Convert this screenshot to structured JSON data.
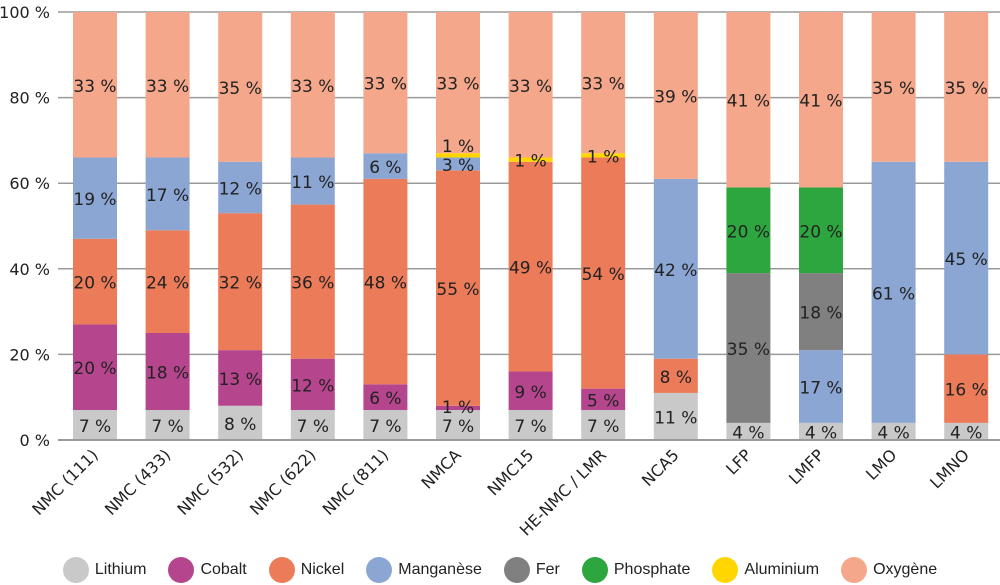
{
  "chart_data": {
    "type": "bar",
    "stacked": true,
    "ylim": [
      0,
      100
    ],
    "yticks": [
      "0 %",
      "20 %",
      "40 %",
      "60 %",
      "80 %",
      "100 %"
    ],
    "grid": true,
    "legend_position": "bottom",
    "categories": [
      "NMC (111)",
      "NMC (433)",
      "NMC (532)",
      "NMC (622)",
      "NMC (811)",
      "NMCA",
      "NMC15",
      "HE-NMC / LMR",
      "NCA5",
      "LFP",
      "LMFP",
      "LMO",
      "LMNO"
    ],
    "series": [
      {
        "name": "Lithium",
        "color": "#c9c9c9",
        "values": [
          7,
          7,
          8,
          7,
          7,
          7,
          7,
          7,
          11,
          4,
          4,
          4,
          4
        ]
      },
      {
        "name": "Cobalt",
        "color": "#b5468e",
        "values": [
          20,
          18,
          13,
          12,
          6,
          1,
          9,
          5,
          0,
          0,
          0,
          0,
          0
        ]
      },
      {
        "name": "Nickel",
        "color": "#ec7b5a",
        "values": [
          20,
          24,
          32,
          36,
          48,
          55,
          49,
          54,
          8,
          0,
          0,
          0,
          16
        ]
      },
      {
        "name": "Manganèse",
        "color": "#8ba6d3",
        "values": [
          19,
          17,
          12,
          11,
          6,
          3,
          0,
          0,
          42,
          0,
          17,
          61,
          45
        ]
      },
      {
        "name": "Fer",
        "color": "#808080",
        "values": [
          0,
          0,
          0,
          0,
          0,
          0,
          0,
          0,
          0,
          35,
          18,
          0,
          0
        ]
      },
      {
        "name": "Phosphate",
        "color": "#2ea63f",
        "values": [
          0,
          0,
          0,
          0,
          0,
          0,
          0,
          0,
          0,
          20,
          20,
          0,
          0
        ]
      },
      {
        "name": "Aluminium",
        "color": "#ffd600",
        "values": [
          0,
          0,
          0,
          0,
          0,
          1,
          1,
          1,
          0,
          0,
          0,
          0,
          0
        ]
      },
      {
        "name": "Oxygène",
        "color": "#f4a78b",
        "values": [
          33,
          33,
          35,
          33,
          33,
          33,
          33,
          33,
          39,
          41,
          41,
          35,
          35
        ]
      }
    ]
  }
}
